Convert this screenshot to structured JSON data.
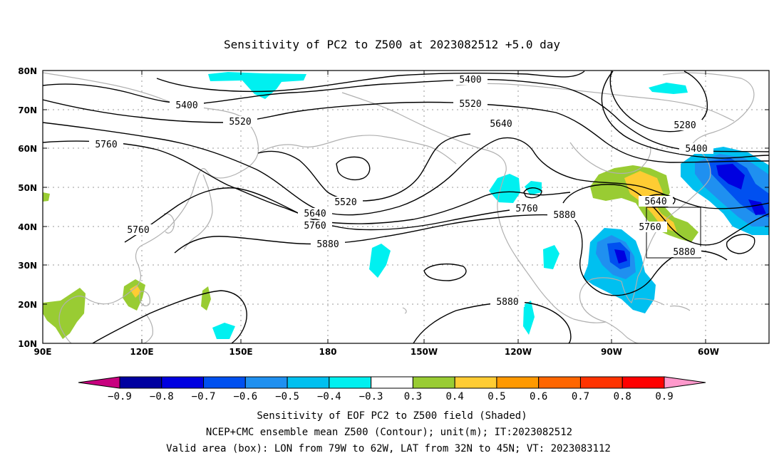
{
  "title": "Sensitivity of PC2 to Z500 at 2023082512 +5.0 day",
  "lat_ticks": [
    "80N",
    "70N",
    "60N",
    "50N",
    "40N",
    "30N",
    "20N",
    "10N"
  ],
  "lon_ticks": [
    "90E",
    "120E",
    "150E",
    "180",
    "150W",
    "120W",
    "90W",
    "60W"
  ],
  "contours": [
    {
      "label": "5400",
      "value": 5400
    },
    {
      "label": "5400",
      "value": 5400
    },
    {
      "label": "5400",
      "value": 5400
    },
    {
      "label": "5520",
      "value": 5520
    },
    {
      "label": "5520",
      "value": 5520
    },
    {
      "label": "5520",
      "value": 5520
    },
    {
      "label": "5640",
      "value": 5640
    },
    {
      "label": "5640",
      "value": 5640
    },
    {
      "label": "5640",
      "value": 5640
    },
    {
      "label": "5760",
      "value": 5760
    },
    {
      "label": "5760",
      "value": 5760
    },
    {
      "label": "5760",
      "value": 5760
    },
    {
      "label": "5760",
      "value": 5760
    },
    {
      "label": "5760",
      "value": 5760
    },
    {
      "label": "5880",
      "value": 5880
    },
    {
      "label": "5880",
      "value": 5880
    },
    {
      "label": "5880",
      "value": 5880
    },
    {
      "label": "5880",
      "value": 5880
    },
    {
      "label": "5280",
      "value": 5280
    }
  ],
  "colorbar": {
    "ticks": [
      "−0.9",
      "−0.8",
      "−0.7",
      "−0.6",
      "−0.5",
      "−0.4",
      "−0.3",
      "0.3",
      "0.4",
      "0.5",
      "0.6",
      "0.7",
      "0.8",
      "0.9"
    ],
    "colors": [
      "#c8007f",
      "#0000a0",
      "#0000e0",
      "#0050f0",
      "#1f90f0",
      "#00c0f0",
      "#00f0f0",
      "#ffffff",
      "#99cc33",
      "#ffcc33",
      "#ff9900",
      "#ff6600",
      "#ff3300",
      "#ff0000",
      "#ff99cc"
    ]
  },
  "caption": {
    "line1": "Sensitivity of EOF PC2 to Z500 field (Shaded)",
    "line2": "NCEP+CMC ensemble mean Z500 (Contour); unit(m); IT:2023082512",
    "line3": "Valid area (box): LON from 79W to 62W, LAT from 32N to 45N; VT: 2023083112"
  }
}
